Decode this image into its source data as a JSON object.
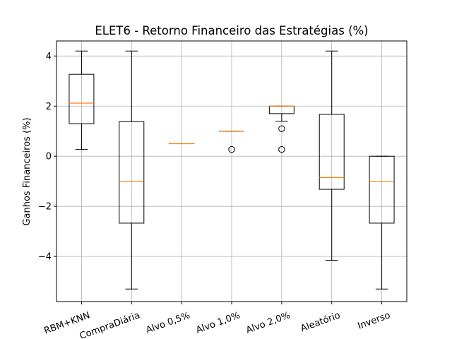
{
  "chart_data": {
    "type": "box",
    "title": "ELET6 - Retorno Financeiro das Estratégias (%)",
    "ylabel": "Ganhos Financeiros (%)",
    "xlabel": "",
    "ylim": [
      -5.8,
      4.6
    ],
    "yticks": [
      -4,
      -2,
      0,
      2,
      4
    ],
    "ytick_labels": [
      "−4",
      "−2",
      "0",
      "2",
      "4"
    ],
    "grid": true,
    "categories": [
      "RBM+KNN",
      "CompraDiária",
      "Alvo 0,5%",
      "Alvo 1,0%",
      "Alvo 2,0%",
      "Aleatório",
      "Inverso"
    ],
    "boxes": [
      {
        "whisker_low": 0.27,
        "q1": 1.3,
        "median": 2.12,
        "q3": 3.27,
        "whisker_high": 4.2,
        "outliers": []
      },
      {
        "whisker_low": -5.3,
        "q1": -2.67,
        "median": -1.0,
        "q3": 1.38,
        "whisker_high": 4.2,
        "outliers": []
      },
      {
        "whisker_low": 0.5,
        "q1": 0.5,
        "median": 0.5,
        "q3": 0.5,
        "whisker_high": 0.5,
        "outliers": []
      },
      {
        "whisker_low": 1.0,
        "q1": 1.0,
        "median": 1.0,
        "q3": 1.0,
        "whisker_high": 1.0,
        "outliers": [
          0.27
        ]
      },
      {
        "whisker_low": 1.4,
        "q1": 1.7,
        "median": 2.0,
        "q3": 2.0,
        "whisker_high": 2.0,
        "outliers": [
          1.1,
          0.27
        ]
      },
      {
        "whisker_low": -4.15,
        "q1": -1.32,
        "median": -0.85,
        "q3": 1.67,
        "whisker_high": 4.2,
        "outliers": []
      },
      {
        "whisker_low": -5.3,
        "q1": -2.67,
        "median": -1.0,
        "q3": 0.0,
        "whisker_high": 0.0,
        "outliers": []
      }
    ],
    "colors": {
      "box": "#000000",
      "median": "#ff7f0e",
      "grid": "#b0b0b0"
    }
  }
}
